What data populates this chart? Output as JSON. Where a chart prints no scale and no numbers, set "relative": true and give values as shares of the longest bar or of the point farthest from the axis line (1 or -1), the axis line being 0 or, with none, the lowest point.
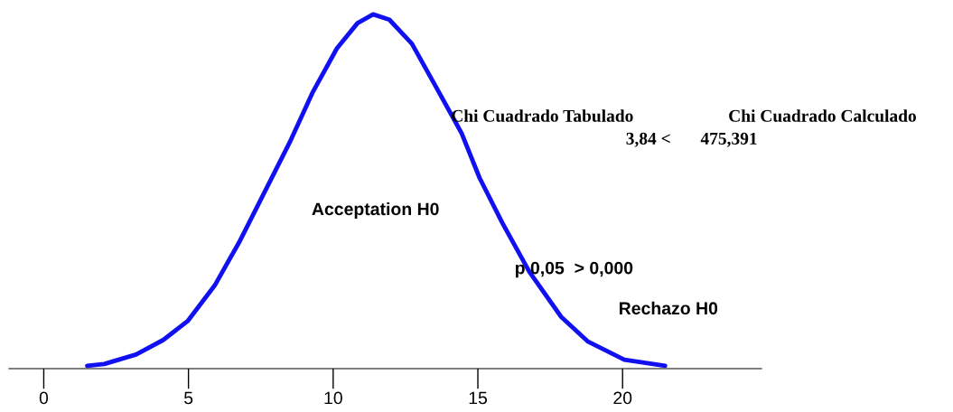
{
  "chart_data": {
    "type": "line",
    "relative": true,
    "color": "#1010f0",
    "x": [
      1.5,
      2.09,
      3.19,
      4.13,
      4.97,
      5.91,
      6.78,
      7.72,
      8.5,
      9.28,
      10.13,
      10.84,
      11.38,
      11.94,
      12.72,
      13.5,
      14.44,
      15.06,
      15.84,
      16.78,
      17.88,
      18.81,
      20.06,
      21.47
    ],
    "values": [
      0.008,
      0.013,
      0.04,
      0.081,
      0.134,
      0.235,
      0.361,
      0.513,
      0.639,
      0.778,
      0.904,
      0.975,
      1.0,
      0.985,
      0.917,
      0.803,
      0.664,
      0.538,
      0.412,
      0.273,
      0.146,
      0.076,
      0.025,
      0.008
    ],
    "xlim": [
      -1.2,
      24.8
    ],
    "xticks": [
      0,
      5,
      10,
      15,
      20
    ],
    "tick_labels": "x",
    "grid": false,
    "legend": false,
    "marker": "none",
    "line_style": "solid",
    "annotations": [
      "Chi Cuadrado Tabulado",
      "Chi Cuadrado Calculado",
      "3,84 <",
      "475,391",
      "Acceptation H0",
      "p 0,05  > 0,000",
      "Rechazo H0"
    ]
  }
}
